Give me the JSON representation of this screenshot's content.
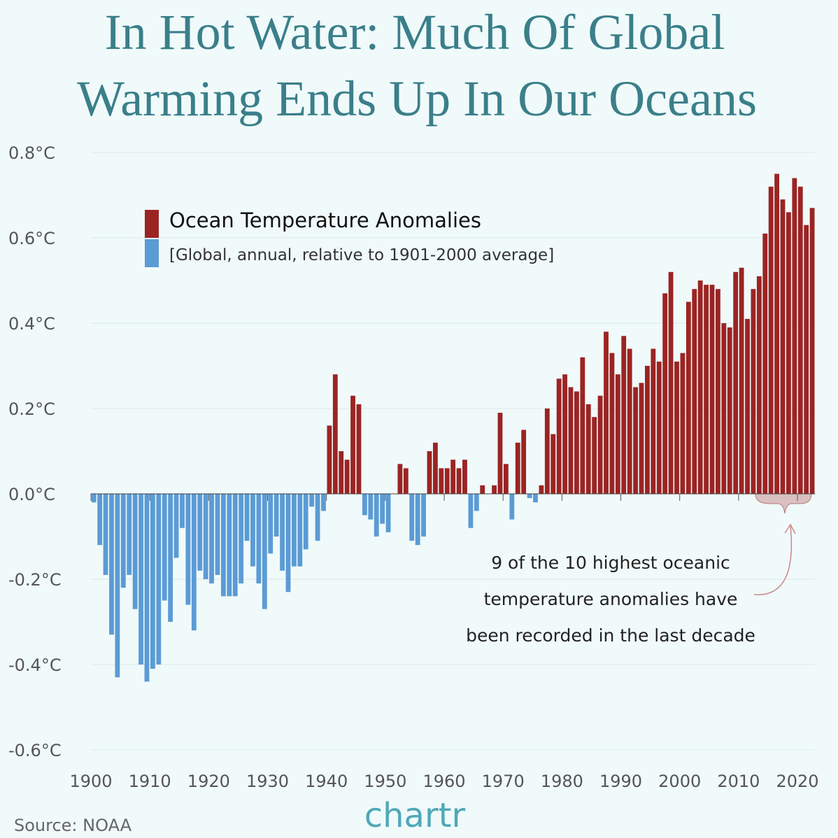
{
  "chart_data": {
    "type": "bar",
    "title": [
      "In Hot Water: Much Of Global",
      "Warming Ends Up In Our Oceans"
    ],
    "legend_title": "Ocean Temperature Anomalies",
    "legend_subtitle": "[Global, annual, relative to 1901-2000 average]",
    "annotation": [
      "9 of the 10 highest oceanic",
      "temperature anomalies have",
      "been recorded in the last decade"
    ],
    "source": "Source: NOAA",
    "brand": "chartr",
    "positive_color": "#9b2423",
    "negative_color": "#5b9bd5",
    "x": [
      1900,
      1901,
      1902,
      1903,
      1904,
      1905,
      1906,
      1907,
      1908,
      1909,
      1910,
      1911,
      1912,
      1913,
      1914,
      1915,
      1916,
      1917,
      1918,
      1919,
      1920,
      1921,
      1922,
      1923,
      1924,
      1925,
      1926,
      1927,
      1928,
      1929,
      1930,
      1931,
      1932,
      1933,
      1934,
      1935,
      1936,
      1937,
      1938,
      1939,
      1940,
      1941,
      1942,
      1943,
      1944,
      1945,
      1946,
      1947,
      1948,
      1949,
      1950,
      1951,
      1952,
      1953,
      1954,
      1955,
      1956,
      1957,
      1958,
      1959,
      1960,
      1961,
      1962,
      1963,
      1964,
      1965,
      1966,
      1967,
      1968,
      1969,
      1970,
      1971,
      1972,
      1973,
      1974,
      1975,
      1976,
      1977,
      1978,
      1979,
      1980,
      1981,
      1982,
      1983,
      1984,
      1985,
      1986,
      1987,
      1988,
      1989,
      1990,
      1991,
      1992,
      1993,
      1994,
      1995,
      1996,
      1997,
      1998,
      1999,
      2000,
      2001,
      2002,
      2003,
      2004,
      2005,
      2006,
      2007,
      2008,
      2009,
      2010,
      2011,
      2012,
      2013,
      2014,
      2015,
      2016,
      2017,
      2018,
      2019,
      2020,
      2021,
      2022
    ],
    "values": [
      -0.02,
      -0.12,
      -0.19,
      -0.33,
      -0.43,
      -0.22,
      -0.19,
      -0.27,
      -0.4,
      -0.44,
      -0.41,
      -0.4,
      -0.25,
      -0.3,
      -0.15,
      -0.08,
      -0.26,
      -0.32,
      -0.18,
      -0.2,
      -0.21,
      -0.19,
      -0.24,
      -0.24,
      -0.24,
      -0.21,
      -0.11,
      -0.17,
      -0.21,
      -0.27,
      -0.14,
      -0.1,
      -0.18,
      -0.23,
      -0.17,
      -0.17,
      -0.13,
      -0.03,
      -0.11,
      -0.04,
      0.16,
      0.28,
      0.1,
      0.08,
      0.23,
      0.21,
      -0.05,
      -0.06,
      -0.1,
      -0.07,
      -0.09,
      0.0,
      0.07,
      0.06,
      -0.11,
      -0.12,
      -0.1,
      0.1,
      0.12,
      0.06,
      0.06,
      0.08,
      0.06,
      0.08,
      -0.08,
      -0.04,
      0.02,
      0.0,
      0.02,
      0.19,
      0.07,
      -0.06,
      0.12,
      0.15,
      -0.01,
      -0.02,
      0.02,
      0.2,
      0.14,
      0.27,
      0.28,
      0.25,
      0.24,
      0.32,
      0.21,
      0.18,
      0.23,
      0.38,
      0.33,
      0.28,
      0.37,
      0.34,
      0.25,
      0.26,
      0.3,
      0.34,
      0.31,
      0.47,
      0.52,
      0.31,
      0.33,
      0.45,
      0.48,
      0.5,
      0.49,
      0.49,
      0.48,
      0.4,
      0.39,
      0.52,
      0.53,
      0.41,
      0.48,
      0.51,
      0.61,
      0.72,
      0.75,
      0.69,
      0.66,
      0.74,
      0.72,
      0.63,
      0.67
    ],
    "xlim": [
      1900,
      2023
    ],
    "xticks": [
      1900,
      1910,
      1920,
      1930,
      1940,
      1950,
      1960,
      1970,
      1980,
      1990,
      2000,
      2010,
      2020
    ],
    "ylim": [
      -0.6,
      0.8
    ],
    "yticks": [
      {
        "value": -0.6,
        "label": "-0.6°C"
      },
      {
        "value": -0.4,
        "label": "-0.4°C"
      },
      {
        "value": -0.2,
        "label": "-0.2°C"
      },
      {
        "value": 0,
        "label": "0.0°C"
      },
      {
        "value": 0.2,
        "label": "0.2°C"
      },
      {
        "value": 0.4,
        "label": "0.4°C"
      },
      {
        "value": 0.6,
        "label": "0.6°C"
      },
      {
        "value": 0.8,
        "label": "0.8°C"
      }
    ],
    "grid": true
  }
}
